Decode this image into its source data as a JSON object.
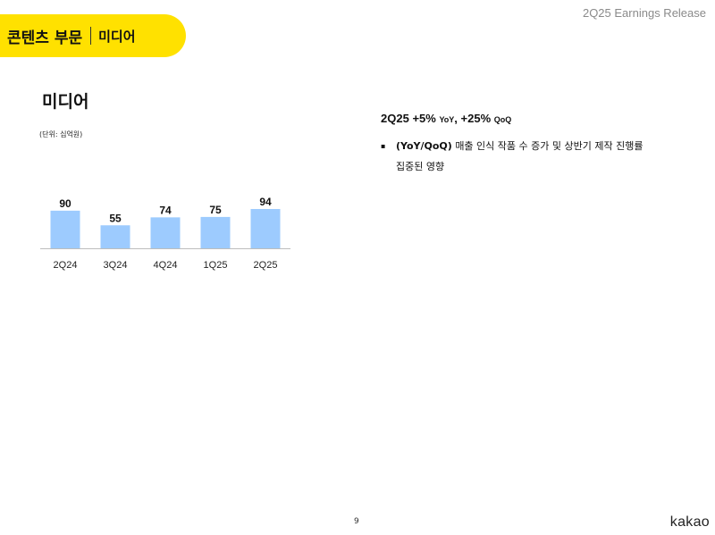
{
  "header": {
    "release": "2Q25 Earnings Release"
  },
  "section": {
    "main": "콘텐츠 부문",
    "sub": "미디어"
  },
  "chart_title": "미디어",
  "chart_unit": "(단위: 십억원)",
  "chart_data": {
    "type": "bar",
    "categories": [
      "2Q24",
      "3Q24",
      "4Q24",
      "1Q25",
      "2Q25"
    ],
    "values": [
      90,
      55,
      74,
      75,
      94
    ],
    "ylim": [
      0,
      94
    ],
    "grid": false,
    "data_labels": true,
    "colors": {
      "bar": "#9dcbfe",
      "axis": "#bdbdbd"
    }
  },
  "headline": {
    "period": "2Q25",
    "yoy_value": "+5%",
    "yoy_label": "YoY",
    "sep": ",",
    "qoq_value": "+25%",
    "qoq_label": "QoQ"
  },
  "bullets": [
    {
      "marker": "▪",
      "bold": "(YoY/QoQ)",
      "line1": "매출 인식 작품 수 증가 및 상반기 제작 진행률",
      "line2": "집중된 영향"
    }
  ],
  "footer": {
    "page": "9",
    "logo": "kakao"
  }
}
